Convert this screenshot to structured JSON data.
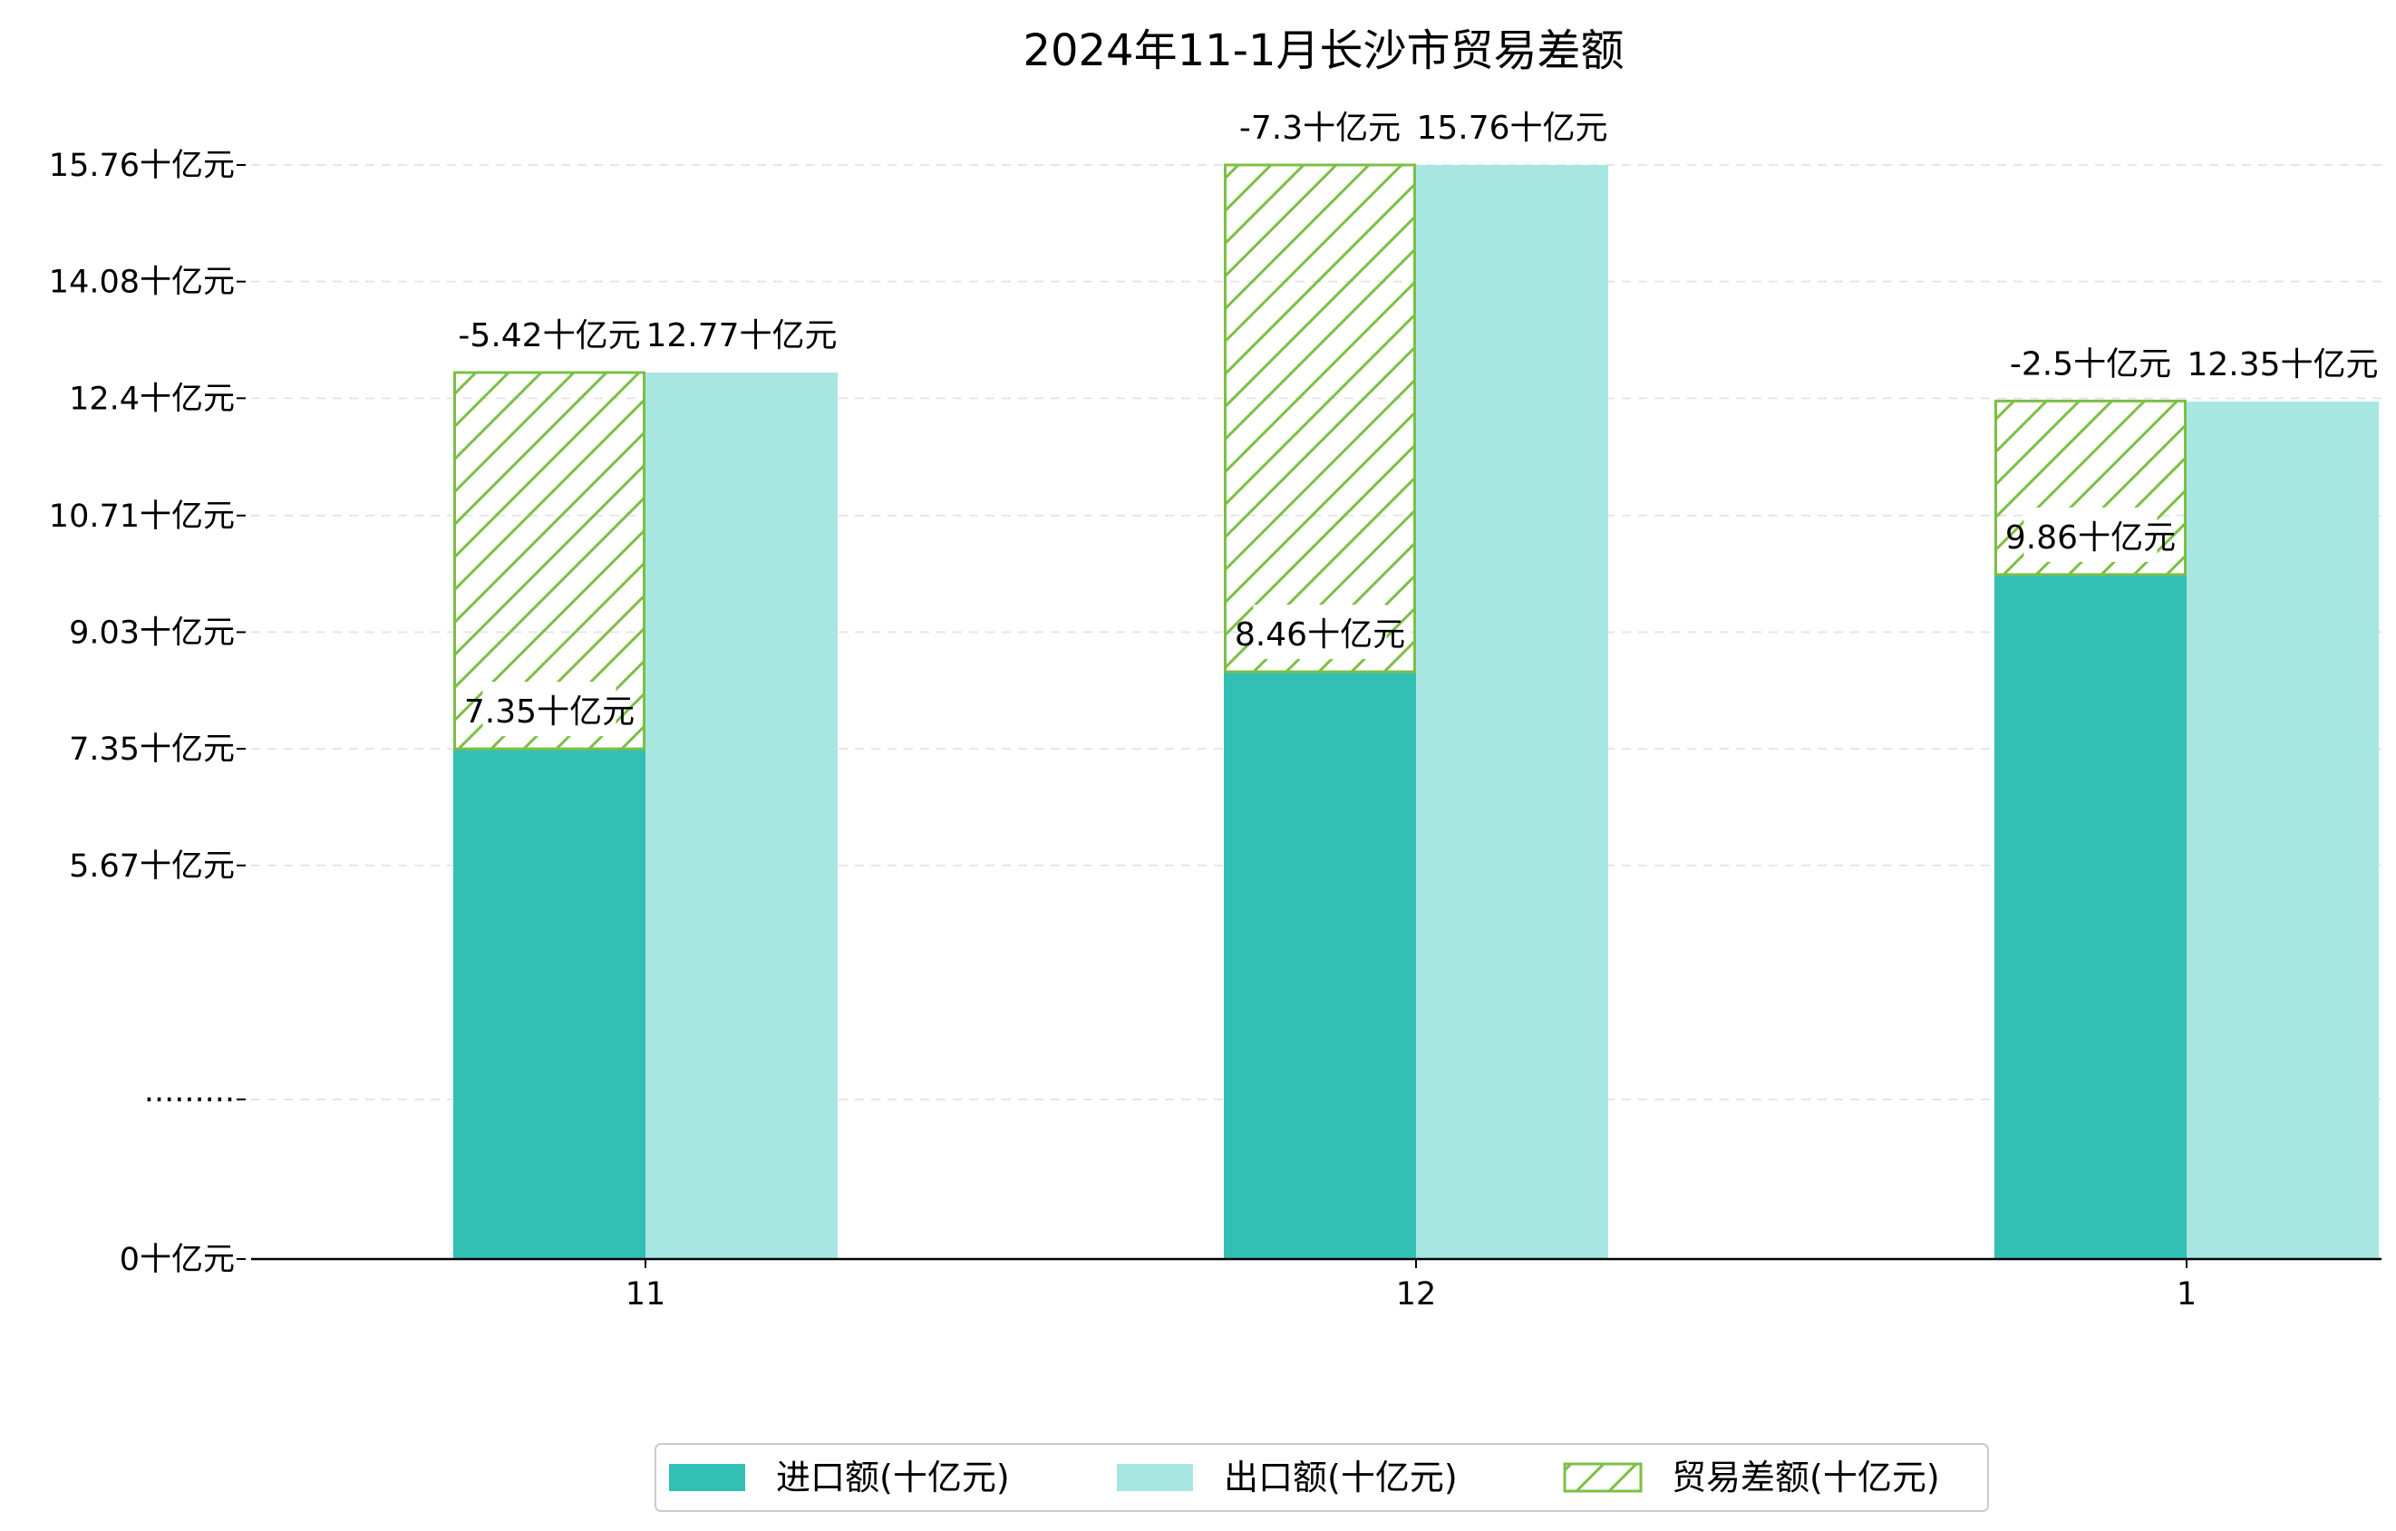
{
  "chart_data": {
    "type": "bar",
    "title": "2024年11-1月长沙市贸易差额",
    "xlabel": "",
    "ylabel": "",
    "categories": [
      "11",
      "12",
      "1"
    ],
    "series": [
      {
        "name": "进口额(十亿元)",
        "values": [
          7.35,
          8.46,
          9.86
        ],
        "labels": [
          "7.35十亿元",
          "8.46十亿元",
          "9.86十亿元"
        ],
        "color": "#32c0b4"
      },
      {
        "name": "出口额(十亿元)",
        "values": [
          12.77,
          15.76,
          12.35
        ],
        "labels": [
          "12.77十亿元",
          "15.76十亿元",
          "12.35十亿元"
        ],
        "color": "#a8e6e1"
      },
      {
        "name": "贸易差额(十亿元)",
        "values": [
          -5.42,
          -7.3,
          -2.5
        ],
        "labels": [
          "-5.42十亿元",
          "-7.3十亿元",
          "-2.5十亿元"
        ],
        "color": "#7cbf45",
        "hatch": true
      }
    ],
    "y_ticks": [
      "0十亿元",
      "·········",
      "5.67十亿元",
      "7.35十亿元",
      "9.03十亿元",
      "10.71十亿元",
      "12.4十亿元",
      "14.08十亿元",
      "15.76十亿元"
    ],
    "y_tick_values": [
      0,
      2.3,
      5.67,
      7.35,
      9.03,
      10.71,
      12.4,
      14.08,
      15.76
    ],
    "y_axis_break": true,
    "ylim": [
      0,
      16.7
    ],
    "grid": true,
    "legend_position": "bottom-center"
  }
}
